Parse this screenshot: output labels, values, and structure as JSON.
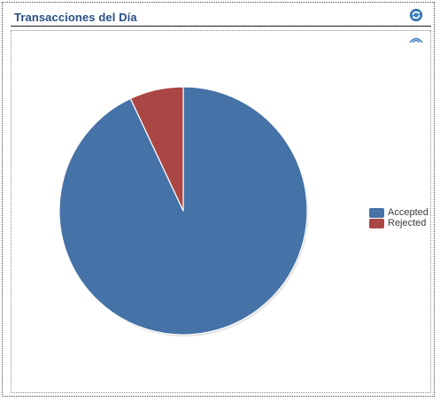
{
  "header": {
    "title": "Transacciones del Día",
    "refresh_icon": "refresh-icon",
    "view_icon": "eye-icon"
  },
  "chart_data": {
    "type": "pie",
    "title": "",
    "slices": [
      {
        "label": "Accepted",
        "value": 93,
        "color": "#4572a7"
      },
      {
        "label": "Rejected",
        "value": 7,
        "color": "#aa4643"
      }
    ],
    "legend_position": "right"
  },
  "legend": {
    "items": [
      {
        "label": "Accepted",
        "color": "#4572a7"
      },
      {
        "label": "Rejected",
        "color": "#aa4643"
      }
    ]
  }
}
